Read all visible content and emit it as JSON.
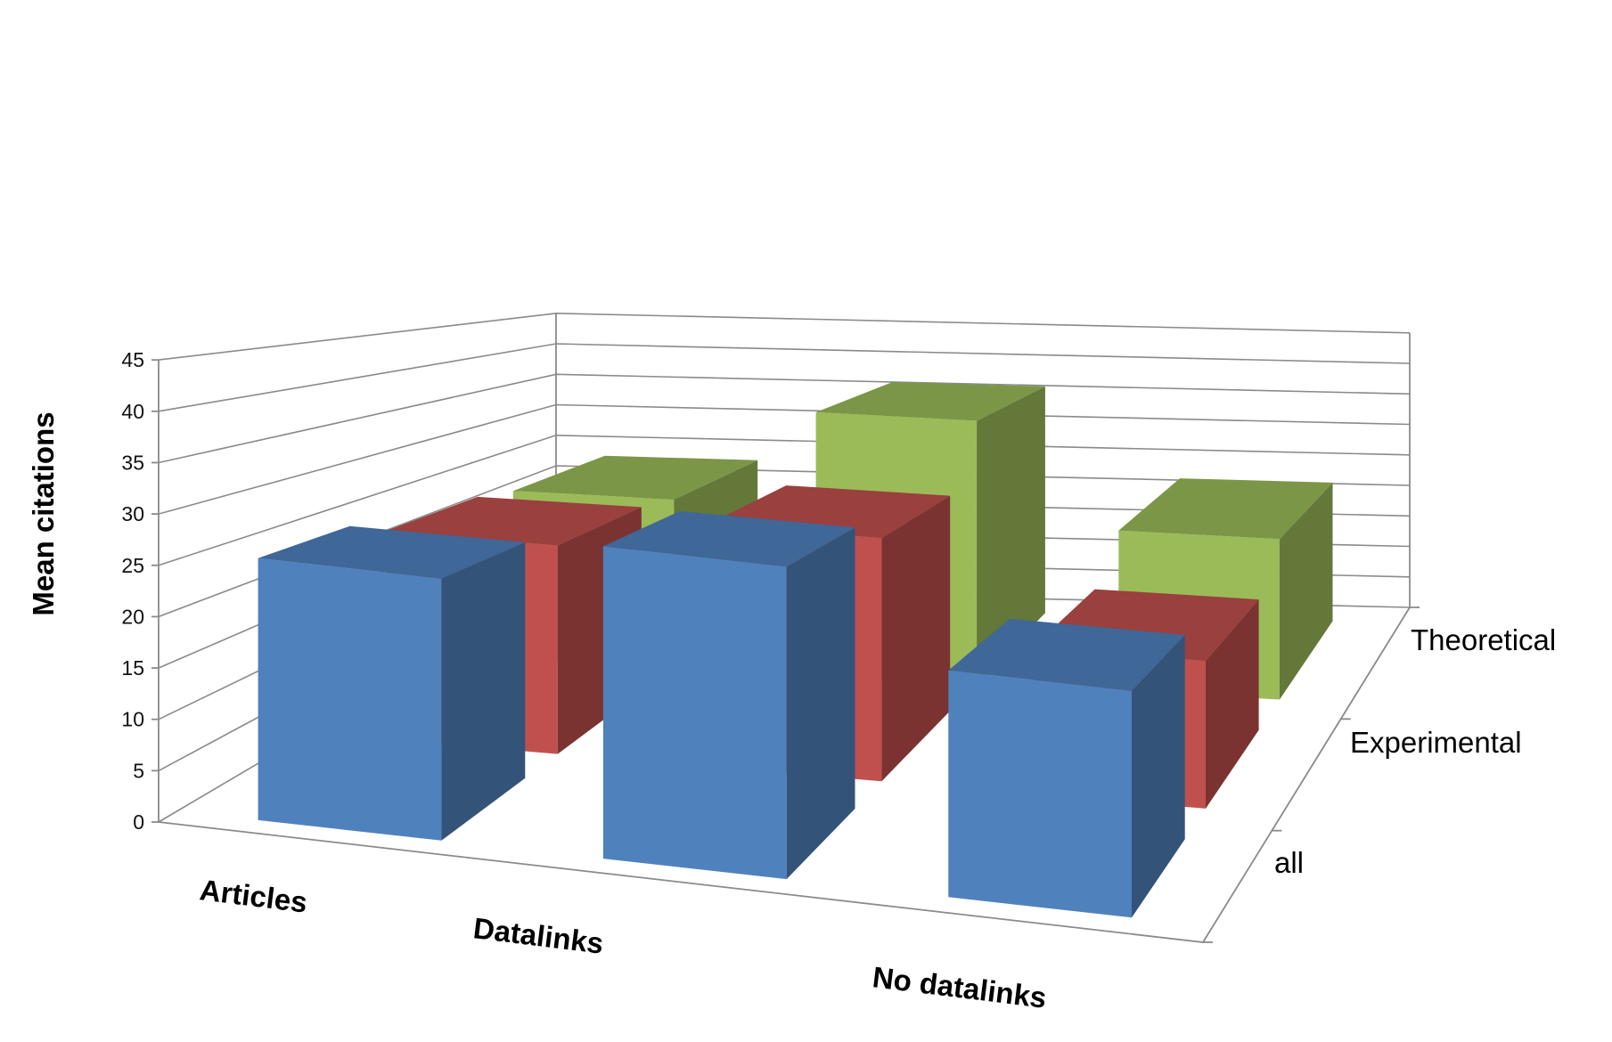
{
  "chart_data": {
    "type": "bar",
    "subtype": "3d-column",
    "title": "",
    "ylabel": "Mean citations",
    "xlabel": "",
    "ylim": [
      0,
      45
    ],
    "yticks": [
      "0",
      "5",
      "10",
      "15",
      "20",
      "25",
      "30",
      "35",
      "40",
      "45"
    ],
    "grid": true,
    "categories": [
      "Articles",
      "Datalinks",
      "No datalinks"
    ],
    "series": [
      {
        "name": "all",
        "values": [
          26,
          31,
          22.5
        ],
        "color": "#4F81BD"
      },
      {
        "name": "Experimental",
        "values": [
          24,
          28,
          17
        ],
        "color": "#C0504D"
      },
      {
        "name": "Theoretical",
        "values": [
          23,
          36,
          22
        ],
        "color": "#9BBB59"
      }
    ]
  }
}
